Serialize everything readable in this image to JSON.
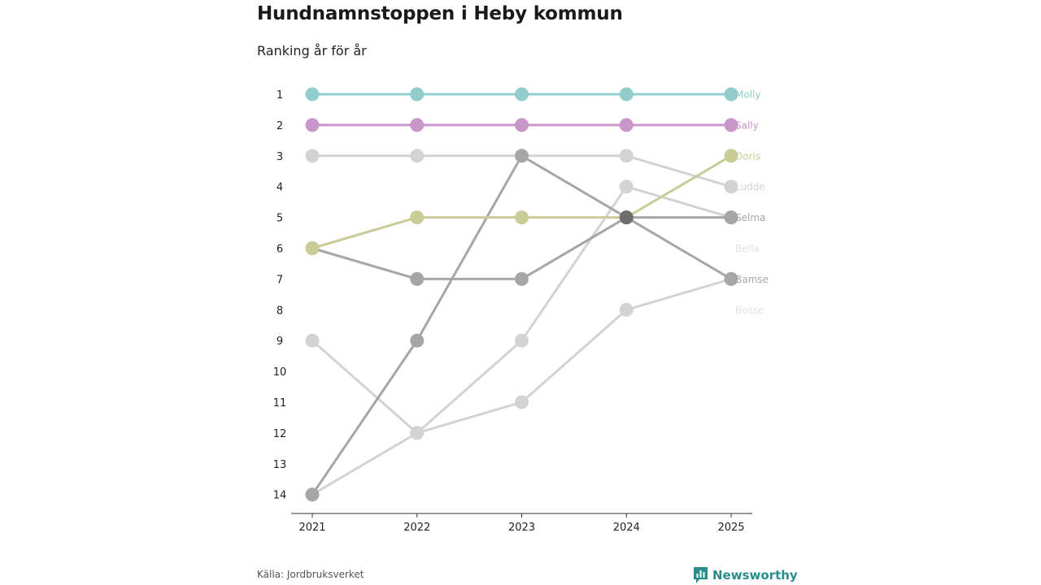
{
  "title": "Hundnamnstoppen i Heby kommun",
  "subtitle": "Ranking år för år",
  "source": "Källa: Jordbruksverket",
  "brand": "Newsworthy",
  "brand_color": "#2a8c8c",
  "chart_data": {
    "type": "line",
    "x": [
      "2021",
      "2022",
      "2023",
      "2024",
      "2025"
    ],
    "y_ticks": [
      1,
      2,
      3,
      4,
      5,
      6,
      7,
      8,
      9,
      10,
      11,
      12,
      13,
      14
    ],
    "ylim": [
      1,
      14
    ],
    "y_inverted": true,
    "series": [
      {
        "name": "Molly",
        "color": "#93cccc",
        "label_color": "#93cccc",
        "values": [
          1,
          1,
          1,
          1,
          1
        ]
      },
      {
        "name": "Sally",
        "color": "#c996c9",
        "label_color": "#c996c9",
        "values": [
          2,
          2,
          2,
          2,
          2
        ]
      },
      {
        "name": "Ludde",
        "color": "#d3d3d3",
        "label_color": "#d3d3d3",
        "values": [
          3,
          3,
          3,
          3,
          4
        ]
      },
      {
        "name": "Doris",
        "color": "#c9cc96",
        "label_color": "#c9cc96",
        "values": [
          6,
          5,
          5,
          5,
          3
        ]
      },
      {
        "name": "Selma",
        "color": "#a6a6a6",
        "label_color": "#a6a6a6",
        "values": [
          14,
          9,
          3,
          5,
          5
        ]
      },
      {
        "name": "Bamse",
        "color": "#a6a6a6",
        "label_color": "#a6a6a6",
        "values": [
          6,
          7,
          7,
          5,
          7
        ]
      },
      {
        "name": "Bella",
        "color": "#d3d3d3",
        "label_color": "#e2e2e2",
        "values": [
          9,
          12,
          9,
          4,
          5
        ],
        "label_at": 6
      },
      {
        "name": "Bosse",
        "color": "#d3d3d3",
        "label_color": "#e2e2e2",
        "values": [
          14,
          12,
          11,
          8,
          7
        ],
        "label_at": 8
      }
    ]
  }
}
